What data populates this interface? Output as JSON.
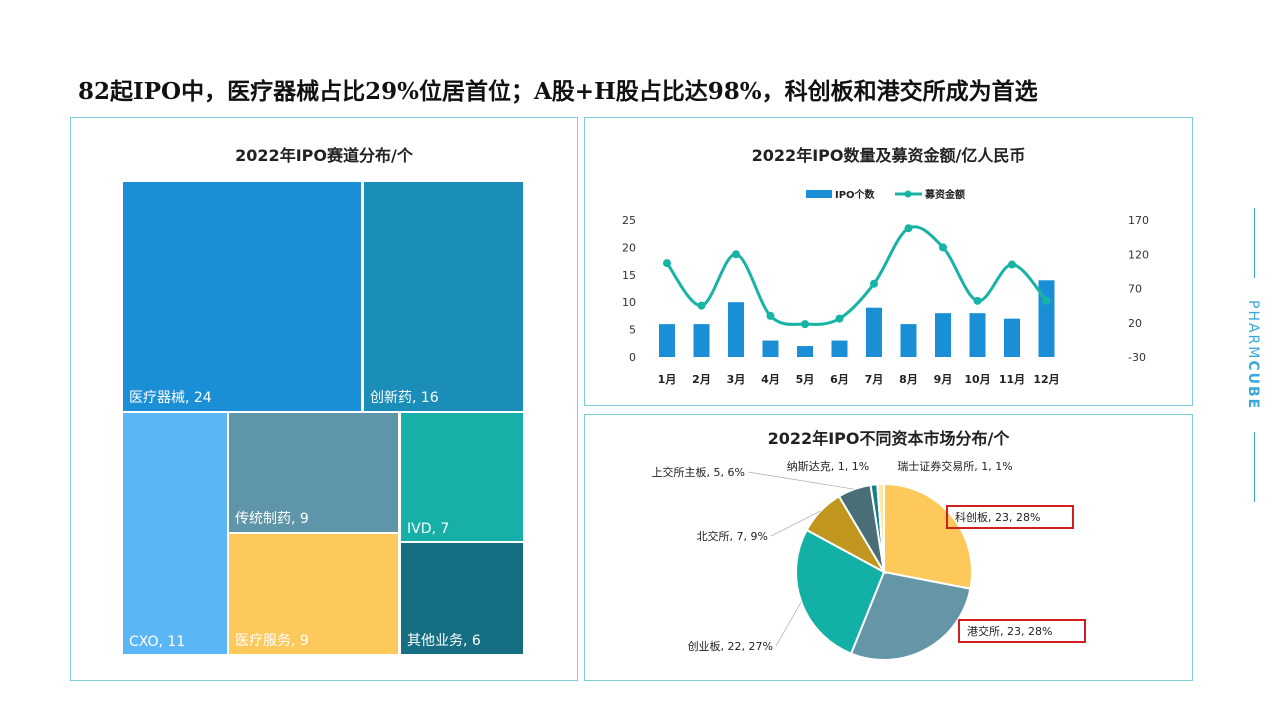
{
  "title": "82起IPO中，医疗器械占比29%位居首位；A股+H股占比达98%，科创板和港交所成为首选",
  "brand": {
    "light": "PHARM",
    "bold": "CUBE"
  },
  "chart_data": [
    {
      "type": "treemap",
      "title": "2022年IPO赛道分布/个",
      "items": [
        {
          "label": "医疗器械",
          "value": 24,
          "color": "#1a8fd6"
        },
        {
          "label": "创新药",
          "value": 16,
          "color": "#1a8db8"
        },
        {
          "label": "CXO",
          "value": 11,
          "color": "#5bb6f5"
        },
        {
          "label": "传统制药",
          "value": 9,
          "color": "#5f95a8"
        },
        {
          "label": "医疗服务",
          "value": 9,
          "color": "#fcc95a"
        },
        {
          "label": "IVD",
          "value": 7,
          "color": "#16b0a8"
        },
        {
          "label": "其他业务",
          "value": 6,
          "color": "#156e82"
        }
      ]
    },
    {
      "type": "bar+line",
      "title": "2022年IPO数量及募资金额/亿人民币",
      "categories": [
        "1月",
        "2月",
        "3月",
        "4月",
        "5月",
        "6月",
        "7月",
        "8月",
        "9月",
        "10月",
        "11月",
        "12月"
      ],
      "series": [
        {
          "name": "IPO个数",
          "type": "bar",
          "axis": "left",
          "color": "#1a8fd6",
          "values": [
            6,
            6,
            10,
            3,
            2,
            3,
            9,
            6,
            8,
            8,
            7,
            14
          ]
        },
        {
          "name": "募资金额",
          "type": "line",
          "axis": "right",
          "color": "#17b3a5",
          "values": [
            107,
            45,
            120,
            30,
            18,
            26,
            77,
            158,
            130,
            52,
            105,
            52
          ]
        }
      ],
      "left_axis": {
        "range": [
          0,
          25
        ],
        "ticks": [
          "0",
          "5",
          "10",
          "15",
          "20",
          "25"
        ]
      },
      "right_axis": {
        "range": [
          -30,
          170
        ],
        "ticks": [
          "-30",
          "20",
          "70",
          "120",
          "170"
        ]
      },
      "legend": "top"
    },
    {
      "type": "pie",
      "title": "2022年IPO不同资本市场分布/个",
      "slices": [
        {
          "label": "科创板, 23, 28%",
          "value": 23,
          "color": "#fcc95a",
          "highlight": true
        },
        {
          "label": "港交所, 23, 28%",
          "value": 23,
          "color": "#6496a8",
          "highlight": true
        },
        {
          "label": "创业板, 22, 27%",
          "value": 22,
          "color": "#12b0a5"
        },
        {
          "label": "北交所, 7, 9%",
          "value": 7,
          "color": "#c0961e"
        },
        {
          "label": "上交所主板, 5, 6%",
          "value": 5,
          "color": "#4a6e78"
        },
        {
          "label": "纳斯达克, 1, 1%",
          "value": 1,
          "color": "#147f86"
        },
        {
          "label": "瑞士证券交易所, 1, 1%",
          "value": 1,
          "color": "#fde9a0"
        }
      ]
    }
  ]
}
